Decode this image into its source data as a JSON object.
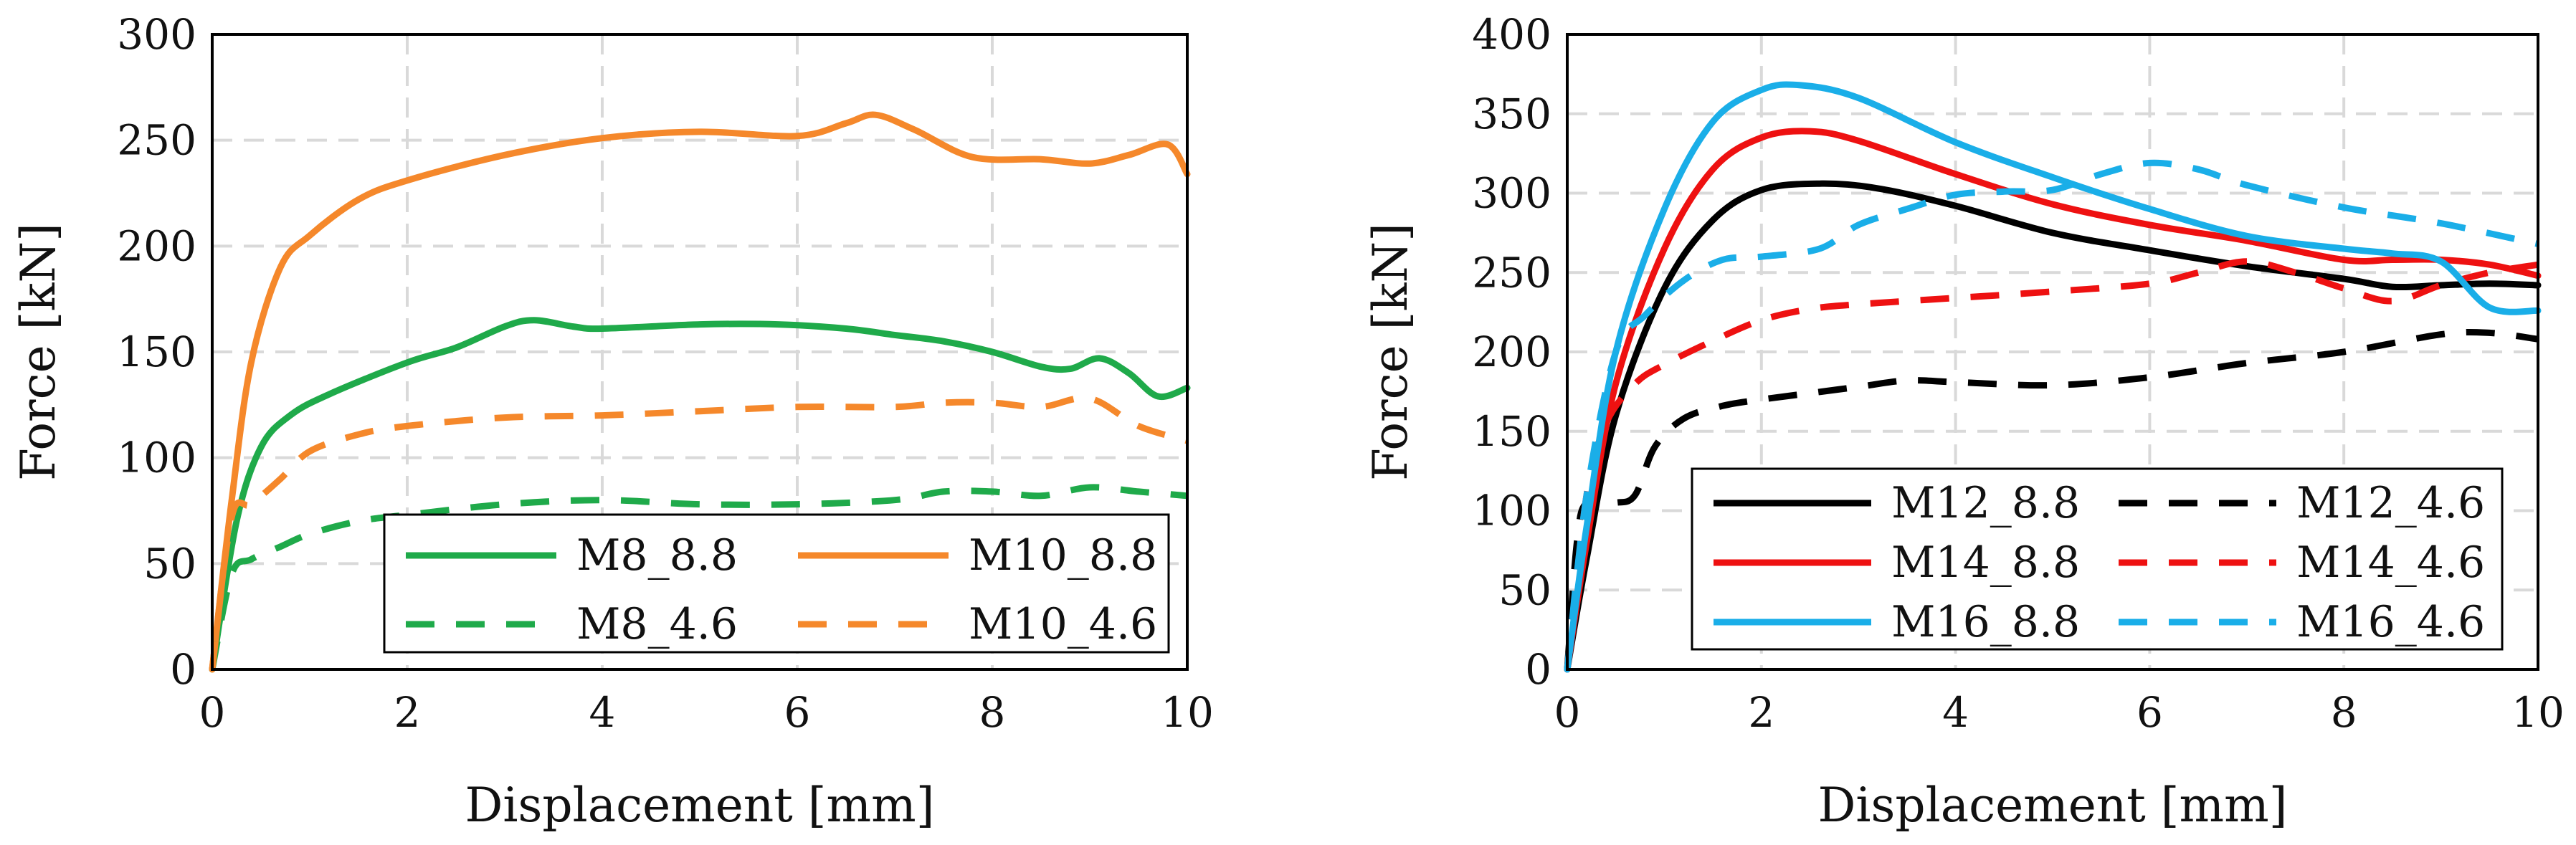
{
  "chart_data": [
    {
      "type": "line",
      "xlabel": "Displacement [mm]",
      "ylabel": "Force [kN]",
      "xlim": [
        0,
        10
      ],
      "ylim": [
        0,
        300
      ],
      "xticks": [
        0,
        2,
        4,
        6,
        8,
        10
      ],
      "yticks": [
        0,
        50,
        100,
        150,
        200,
        250,
        300
      ],
      "grid": true,
      "legend_position": "bottom-right",
      "series": [
        {
          "name": "M8_8.8",
          "color": "#1faa4a",
          "dashed": false,
          "x": [
            0,
            0.25,
            0.5,
            0.8,
            1.2,
            2,
            2.5,
            3,
            3.3,
            3.7,
            4,
            5,
            5.8,
            6.5,
            7,
            7.5,
            8,
            8.5,
            8.8,
            9.1,
            9.4,
            9.7,
            10
          ],
          "y": [
            0,
            70,
            105,
            120,
            130,
            145,
            152,
            162,
            165,
            162,
            161,
            163,
            163,
            161,
            158,
            155,
            150,
            143,
            142,
            147,
            140,
            129,
            133
          ]
        },
        {
          "name": "M10_8.8",
          "color": "#f5882b",
          "dashed": false,
          "x": [
            0,
            0.2,
            0.4,
            0.7,
            1,
            1.5,
            2,
            3,
            4,
            5,
            6,
            6.5,
            6.8,
            7.2,
            7.8,
            8.5,
            9,
            9.4,
            9.8,
            10
          ],
          "y": [
            0,
            80,
            145,
            190,
            205,
            222,
            231,
            243,
            251,
            254,
            252,
            258,
            262,
            255,
            242,
            241,
            239,
            243,
            248,
            234
          ]
        },
        {
          "name": "M8_4.6",
          "color": "#1faa4a",
          "dashed": true,
          "x": [
            0,
            0.2,
            0.4,
            0.7,
            1,
            1.5,
            2,
            3,
            4,
            5,
            6,
            7,
            7.5,
            8,
            8.5,
            9,
            9.5,
            10
          ],
          "y": [
            0,
            45,
            52,
            58,
            64,
            70,
            73,
            78,
            80,
            78,
            78,
            80,
            84,
            84,
            82,
            86,
            84,
            82
          ]
        },
        {
          "name": "M10_4.6",
          "color": "#f5882b",
          "dashed": true,
          "x": [
            0,
            0.2,
            0.4,
            0.7,
            1,
            1.5,
            2,
            3,
            4,
            5,
            6,
            7,
            7.5,
            8,
            8.5,
            9,
            9.5,
            10
          ],
          "y": [
            0,
            72,
            78,
            90,
            103,
            111,
            115,
            119,
            120,
            122,
            124,
            124,
            126,
            126,
            124,
            128,
            115,
            108
          ]
        }
      ]
    },
    {
      "type": "line",
      "xlabel": "Displacement [mm]",
      "ylabel": "Force [kN]",
      "xlim": [
        0,
        10
      ],
      "ylim": [
        0,
        400
      ],
      "xticks": [
        0,
        2,
        4,
        6,
        8,
        10
      ],
      "yticks": [
        0,
        50,
        100,
        150,
        200,
        250,
        300,
        350,
        400
      ],
      "grid": true,
      "legend_position": "bottom",
      "series": [
        {
          "name": "M12_8.8",
          "color": "#000000",
          "dashed": false,
          "x": [
            0,
            0.2,
            0.5,
            1,
            1.5,
            2,
            2.6,
            3.2,
            4,
            5,
            6,
            7,
            8,
            8.5,
            9,
            9.5,
            10
          ],
          "y": [
            0,
            70,
            160,
            240,
            283,
            302,
            306,
            303,
            292,
            275,
            264,
            254,
            246,
            241,
            242,
            243,
            242
          ]
        },
        {
          "name": "M12_4.6",
          "color": "#000000",
          "dashed": true,
          "x": [
            0,
            0.1,
            0.2,
            0.5,
            0.7,
            0.9,
            1.2,
            1.6,
            2,
            2.5,
            3,
            3.5,
            4,
            5,
            6,
            7,
            8,
            9,
            9.5,
            10
          ],
          "y": [
            0,
            80,
            105,
            105,
            110,
            140,
            158,
            166,
            170,
            174,
            178,
            182,
            181,
            179,
            184,
            193,
            200,
            211,
            212,
            208
          ]
        },
        {
          "name": "M14_8.8",
          "color": "#ee1111",
          "dashed": false,
          "x": [
            0,
            0.2,
            0.5,
            1,
            1.5,
            2,
            2.5,
            3,
            4,
            5,
            6,
            7,
            8,
            8.5,
            9,
            9.5,
            10
          ],
          "y": [
            0,
            80,
            180,
            265,
            315,
            335,
            339,
            333,
            312,
            293,
            280,
            270,
            258,
            258,
            258,
            255,
            248
          ]
        },
        {
          "name": "M14_4.6",
          "color": "#ee1111",
          "dashed": true,
          "x": [
            0,
            0.2,
            0.4,
            0.7,
            1,
            1.5,
            2,
            2.5,
            3,
            4,
            5,
            6,
            6.5,
            7,
            7.5,
            8,
            8.5,
            9,
            9.5,
            10
          ],
          "y": [
            0,
            110,
            155,
            180,
            192,
            207,
            220,
            227,
            230,
            234,
            238,
            243,
            250,
            257,
            250,
            240,
            232,
            242,
            250,
            255
          ]
        },
        {
          "name": "M16_8.8",
          "color": "#1aaee8",
          "dashed": false,
          "x": [
            0,
            0.2,
            0.5,
            1,
            1.5,
            2,
            2.4,
            3,
            4,
            5,
            6,
            7,
            8,
            8.5,
            9,
            9.5,
            10
          ],
          "y": [
            0,
            90,
            200,
            290,
            345,
            365,
            368,
            360,
            332,
            310,
            290,
            273,
            265,
            262,
            257,
            228,
            226
          ]
        },
        {
          "name": "M16_4.6",
          "color": "#1aaee8",
          "dashed": true,
          "x": [
            0,
            0.2,
            0.5,
            0.8,
            1.2,
            1.6,
            2,
            2.6,
            3,
            3.5,
            4,
            4.5,
            5,
            5.5,
            6,
            6.5,
            7,
            8,
            9,
            10
          ],
          "y": [
            0,
            110,
            200,
            223,
            245,
            258,
            260,
            265,
            280,
            290,
            299,
            301,
            302,
            312,
            319,
            315,
            305,
            291,
            281,
            268
          ]
        }
      ],
      "legend_order": [
        "M12_8.8",
        "M12_4.6",
        "M14_8.8",
        "M14_4.6",
        "M16_8.8",
        "M16_4.6"
      ]
    }
  ]
}
